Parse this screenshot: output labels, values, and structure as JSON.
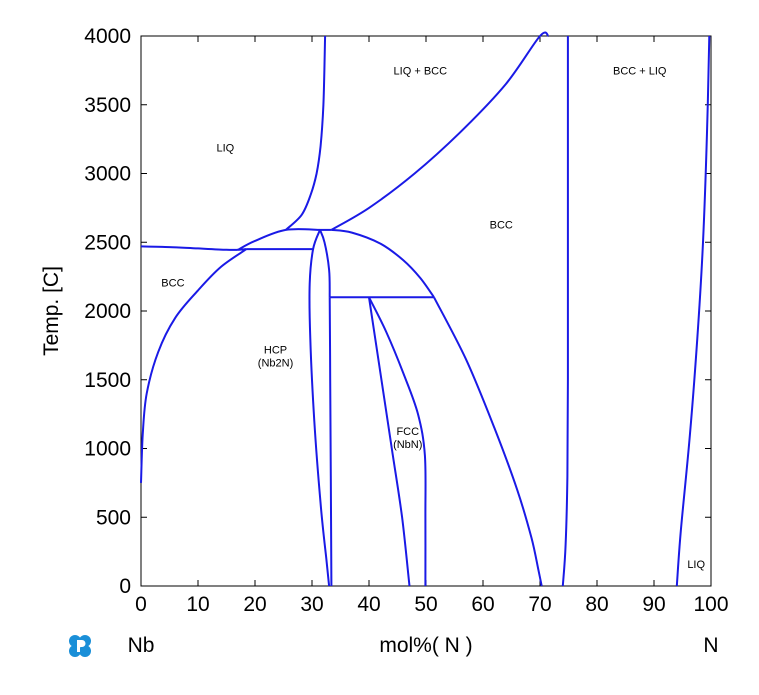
{
  "chart_data": {
    "type": "line",
    "title": "",
    "xlabel": "mol%( N )",
    "ylabel": "Temp. [C]",
    "xlim": [
      0,
      100
    ],
    "ylim": [
      0,
      4000
    ],
    "x_ticks": [
      0,
      10,
      20,
      30,
      40,
      50,
      60,
      70,
      80,
      90,
      100
    ],
    "y_ticks": [
      0,
      500,
      1000,
      1500,
      2000,
      2500,
      3000,
      3500,
      4000
    ],
    "x_tick_labels": [
      "0",
      "10",
      "20",
      "30",
      "40",
      "50",
      "60",
      "70",
      "80",
      "90",
      "100"
    ],
    "y_tick_labels": [
      "0",
      "500",
      "1000",
      "1500",
      "2000",
      "2500",
      "3000",
      "3500",
      "4000"
    ],
    "left_component": "Nb",
    "right_component": "N",
    "grid": false,
    "line_color": "#1a1ae6",
    "region_labels": [
      {
        "lines": [
          "LIQ"
        ],
        "x": 14.8,
        "y": 3160
      },
      {
        "lines": [
          "LIQ + BCC"
        ],
        "x": 49,
        "y": 3720
      },
      {
        "lines": [
          "BCC + LIQ"
        ],
        "x": 87.5,
        "y": 3720
      },
      {
        "lines": [
          "BCC"
        ],
        "x": 5.6,
        "y": 2180
      },
      {
        "lines": [
          "BCC"
        ],
        "x": 63.2,
        "y": 2600
      },
      {
        "lines": [
          "HCP",
          "(Nb2N)"
        ],
        "x": 23.6,
        "y": 1690
      },
      {
        "lines": [
          "FCC",
          "(NbN)"
        ],
        "x": 46.8,
        "y": 1100
      },
      {
        "lines": [
          "LIQ"
        ],
        "x": 97.4,
        "y": 130
      }
    ],
    "series": [
      {
        "x": [
          32.3,
          32.0,
          31.5,
          30.8,
          29.8,
          28.2,
          25.4
        ],
        "y": [
          4000,
          3500,
          3200,
          3000,
          2850,
          2700,
          2590
        ]
      },
      {
        "x": [
          0,
          5,
          10,
          15,
          17,
          18.5
        ],
        "y": [
          2470,
          2465,
          2455,
          2445,
          2445,
          2450
        ]
      },
      {
        "x": [
          17,
          20,
          25.4,
          31.4
        ],
        "y": [
          2445,
          2510,
          2590,
          2590
        ]
      },
      {
        "x": [
          0,
          0.3,
          1,
          3,
          6,
          10,
          14,
          18.5
        ],
        "y": [
          750,
          1100,
          1400,
          1700,
          1950,
          2150,
          2320,
          2450
        ]
      },
      {
        "x": [
          18.5,
          30.2
        ],
        "y": [
          2450,
          2450
        ]
      },
      {
        "x": [
          31.4,
          30.2,
          29.6,
          29.7,
          30.4,
          31.5,
          32.5,
          33.0
        ],
        "y": [
          2590,
          2450,
          2200,
          1800,
          1200,
          600,
          200,
          0
        ]
      },
      {
        "x": [
          31.4,
          32.2,
          33.0,
          33.1
        ],
        "y": [
          2590,
          2500,
          2300,
          2100
        ]
      },
      {
        "x": [
          31.4,
          33.4
        ],
        "y": [
          2590,
          2590
        ]
      },
      {
        "x": [
          33.1,
          33.2,
          33.3,
          33.4
        ],
        "y": [
          2100,
          1500,
          800,
          0
        ]
      },
      {
        "x": [
          33.1,
          51.4
        ],
        "y": [
          2100,
          2100
        ]
      },
      {
        "x": [
          33.4,
          37,
          42,
          46,
          49,
          51.4
        ],
        "y": [
          2590,
          2570,
          2490,
          2370,
          2240,
          2100
        ]
      },
      {
        "x": [
          33.4,
          40,
          48,
          56,
          64,
          70,
          71.5
        ],
        "y": [
          2590,
          2750,
          3000,
          3300,
          3650,
          4000,
          4000
        ]
      },
      {
        "x": [
          51.4,
          57,
          62,
          66,
          68.5,
          69.8,
          70.3
        ],
        "y": [
          2100,
          1650,
          1150,
          700,
          350,
          100,
          0
        ]
      },
      {
        "x": [
          40,
          42,
          44,
          45.8,
          47.1
        ],
        "y": [
          2100,
          1550,
          1000,
          500,
          0
        ]
      },
      {
        "x": [
          40,
          43,
          46,
          48.6,
          49.8,
          49.9,
          49.9
        ],
        "y": [
          2100,
          1850,
          1550,
          1250,
          950,
          500,
          0
        ]
      },
      {
        "x": [
          74.9,
          74.9,
          74.9,
          74.8,
          74.5,
          74.0
        ],
        "y": [
          4000,
          2500,
          1500,
          800,
          300,
          0
        ]
      },
      {
        "x": [
          99.7,
          99.3,
          98.6,
          97.6,
          96.3,
          94.7,
          94.0
        ],
        "y": [
          4000,
          3300,
          2500,
          1800,
          1100,
          400,
          0
        ]
      }
    ]
  }
}
